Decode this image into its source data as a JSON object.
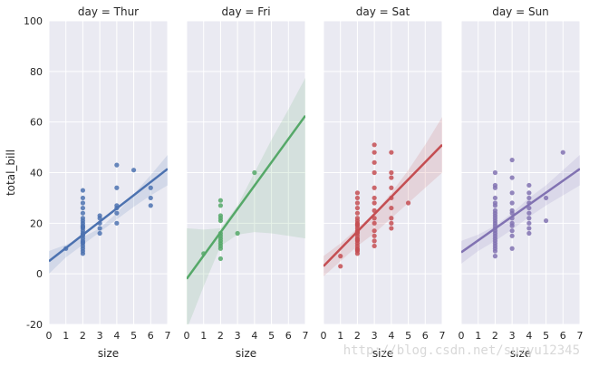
{
  "chart_data": {
    "type": "scatter",
    "ylabel": "total_bill",
    "xlabel": "size",
    "xlim": [
      0,
      7
    ],
    "ylim": [
      -20,
      100
    ],
    "xticks": [
      "0",
      "1",
      "2",
      "3",
      "4",
      "5",
      "6",
      "7"
    ],
    "yticks": [
      "-20",
      "0",
      "20",
      "40",
      "60",
      "80",
      "100"
    ],
    "grid": true,
    "panels": [
      {
        "title": "day = Thur",
        "color": "#4c72b0",
        "fit": {
          "x": [
            0,
            7
          ],
          "y": [
            5,
            41.5
          ]
        },
        "ci_upper": [
          [
            0,
            9
          ],
          [
            1,
            11.5
          ],
          [
            2,
            14.5
          ],
          [
            3,
            18
          ],
          [
            4,
            24
          ],
          [
            5,
            31.5
          ],
          [
            6,
            39
          ],
          [
            7,
            47
          ]
        ],
        "ci_lower": [
          [
            7,
            35
          ],
          [
            6,
            31
          ],
          [
            5,
            26.5
          ],
          [
            4,
            21.5
          ],
          [
            3,
            16.5
          ],
          [
            2,
            11.5
          ],
          [
            1,
            6.5
          ],
          [
            0,
            0
          ]
        ],
        "points": [
          [
            1,
            10
          ],
          [
            2,
            8
          ],
          [
            2,
            9
          ],
          [
            2,
            10
          ],
          [
            2,
            11
          ],
          [
            2,
            12
          ],
          [
            2,
            13
          ],
          [
            2,
            14
          ],
          [
            2,
            15
          ],
          [
            2,
            16
          ],
          [
            2,
            17
          ],
          [
            2,
            18
          ],
          [
            2,
            19
          ],
          [
            2,
            20
          ],
          [
            2,
            21
          ],
          [
            2,
            22
          ],
          [
            2,
            24
          ],
          [
            2,
            26
          ],
          [
            2,
            28
          ],
          [
            2,
            30
          ],
          [
            2,
            33
          ],
          [
            2,
            12.5
          ],
          [
            2,
            15.5
          ],
          [
            2,
            18.5
          ],
          [
            3,
            16
          ],
          [
            3,
            18
          ],
          [
            3,
            20
          ],
          [
            3,
            22
          ],
          [
            3,
            23
          ],
          [
            4,
            20
          ],
          [
            4,
            24
          ],
          [
            4,
            26
          ],
          [
            4,
            27
          ],
          [
            4,
            34
          ],
          [
            4,
            43
          ],
          [
            5,
            41
          ],
          [
            6,
            27
          ],
          [
            6,
            30
          ],
          [
            6,
            34
          ]
        ]
      },
      {
        "title": "day = Fri",
        "color": "#55a868",
        "fit": {
          "x": [
            0,
            7
          ],
          "y": [
            -2,
            62.5
          ]
        },
        "ci_upper": [
          [
            0,
            18
          ],
          [
            1,
            17.5
          ],
          [
            2,
            18
          ],
          [
            3,
            27
          ],
          [
            4,
            40
          ],
          [
            5,
            53
          ],
          [
            6,
            65
          ],
          [
            7,
            77.5
          ]
        ],
        "ci_lower": [
          [
            7,
            14
          ],
          [
            6,
            15
          ],
          [
            5,
            16
          ],
          [
            4,
            16.5
          ],
          [
            3,
            15.5
          ],
          [
            2,
            11
          ],
          [
            1,
            -5
          ],
          [
            0,
            -22
          ]
        ],
        "points": [
          [
            1,
            8
          ],
          [
            2,
            6
          ],
          [
            2,
            10
          ],
          [
            2,
            11
          ],
          [
            2,
            12
          ],
          [
            2,
            13
          ],
          [
            2,
            14
          ],
          [
            2,
            15
          ],
          [
            2,
            16
          ],
          [
            2,
            21
          ],
          [
            2,
            22
          ],
          [
            2,
            23
          ],
          [
            2,
            27
          ],
          [
            2,
            29
          ],
          [
            3,
            16
          ],
          [
            4,
            40
          ]
        ]
      },
      {
        "title": "day = Sat",
        "color": "#c44e52",
        "fit": {
          "x": [
            0,
            7
          ],
          "y": [
            3,
            51
          ]
        },
        "ci_upper": [
          [
            0,
            7
          ],
          [
            1,
            12
          ],
          [
            2,
            18
          ],
          [
            3,
            24
          ],
          [
            4,
            32
          ],
          [
            5,
            41
          ],
          [
            6,
            51
          ],
          [
            7,
            62
          ]
        ],
        "ci_lower": [
          [
            7,
            40
          ],
          [
            6,
            34
          ],
          [
            5,
            28
          ],
          [
            4,
            22
          ],
          [
            3,
            16
          ],
          [
            2,
            11
          ],
          [
            1,
            5
          ],
          [
            0,
            -1
          ]
        ],
        "points": [
          [
            1,
            3
          ],
          [
            1,
            7
          ],
          [
            2,
            8
          ],
          [
            2,
            9
          ],
          [
            2,
            10
          ],
          [
            2,
            11
          ],
          [
            2,
            12
          ],
          [
            2,
            13
          ],
          [
            2,
            14
          ],
          [
            2,
            15
          ],
          [
            2,
            16
          ],
          [
            2,
            17
          ],
          [
            2,
            18
          ],
          [
            2,
            19
          ],
          [
            2,
            20
          ],
          [
            2,
            21
          ],
          [
            2,
            22
          ],
          [
            2,
            24
          ],
          [
            2,
            26
          ],
          [
            2,
            28
          ],
          [
            2,
            30
          ],
          [
            2,
            32
          ],
          [
            2,
            13.5
          ],
          [
            2,
            16.5
          ],
          [
            2,
            19.5
          ],
          [
            2,
            9.5
          ],
          [
            3,
            11
          ],
          [
            3,
            13
          ],
          [
            3,
            15
          ],
          [
            3,
            17
          ],
          [
            3,
            20
          ],
          [
            3,
            22
          ],
          [
            3,
            25
          ],
          [
            3,
            28
          ],
          [
            3,
            30
          ],
          [
            3,
            34
          ],
          [
            3,
            40
          ],
          [
            3,
            44
          ],
          [
            3,
            48
          ],
          [
            3,
            51
          ],
          [
            4,
            18
          ],
          [
            4,
            20
          ],
          [
            4,
            22
          ],
          [
            4,
            26
          ],
          [
            4,
            30
          ],
          [
            4,
            34
          ],
          [
            4,
            38
          ],
          [
            4,
            40
          ],
          [
            4,
            48
          ],
          [
            5,
            28
          ]
        ]
      },
      {
        "title": "day = Sun",
        "color": "#8172b2",
        "fit": {
          "x": [
            0,
            7
          ],
          "y": [
            8.5,
            41.5
          ]
        },
        "ci_upper": [
          [
            0,
            13
          ],
          [
            1,
            15.5
          ],
          [
            2,
            19
          ],
          [
            3,
            24
          ],
          [
            4,
            30
          ],
          [
            5,
            35
          ],
          [
            6,
            41
          ],
          [
            7,
            47
          ]
        ],
        "ci_lower": [
          [
            7,
            35
          ],
          [
            6,
            31
          ],
          [
            5,
            27
          ],
          [
            4,
            22.5
          ],
          [
            3,
            17.5
          ],
          [
            2,
            13
          ],
          [
            1,
            9
          ],
          [
            0,
            4
          ]
        ],
        "points": [
          [
            2,
            7
          ],
          [
            2,
            9
          ],
          [
            2,
            10
          ],
          [
            2,
            11
          ],
          [
            2,
            12
          ],
          [
            2,
            13
          ],
          [
            2,
            14
          ],
          [
            2,
            15
          ],
          [
            2,
            16
          ],
          [
            2,
            17
          ],
          [
            2,
            18
          ],
          [
            2,
            19
          ],
          [
            2,
            20
          ],
          [
            2,
            21
          ],
          [
            2,
            22
          ],
          [
            2,
            23
          ],
          [
            2,
            24
          ],
          [
            2,
            25
          ],
          [
            2,
            27
          ],
          [
            2,
            28
          ],
          [
            2,
            30
          ],
          [
            2,
            34
          ],
          [
            2,
            35
          ],
          [
            2,
            40
          ],
          [
            3,
            10
          ],
          [
            3,
            15
          ],
          [
            3,
            17
          ],
          [
            3,
            19
          ],
          [
            3,
            20
          ],
          [
            3,
            22
          ],
          [
            3,
            24
          ],
          [
            3,
            25
          ],
          [
            3,
            28
          ],
          [
            3,
            32
          ],
          [
            3,
            38
          ],
          [
            3,
            45
          ],
          [
            4,
            16
          ],
          [
            4,
            18
          ],
          [
            4,
            20
          ],
          [
            4,
            22
          ],
          [
            4,
            24
          ],
          [
            4,
            26
          ],
          [
            4,
            28
          ],
          [
            4,
            30
          ],
          [
            4,
            32
          ],
          [
            4,
            35
          ],
          [
            5,
            21
          ],
          [
            5,
            30
          ],
          [
            6,
            48
          ]
        ]
      }
    ]
  },
  "watermark": "http://blog.csdn.net/suzyu12345"
}
